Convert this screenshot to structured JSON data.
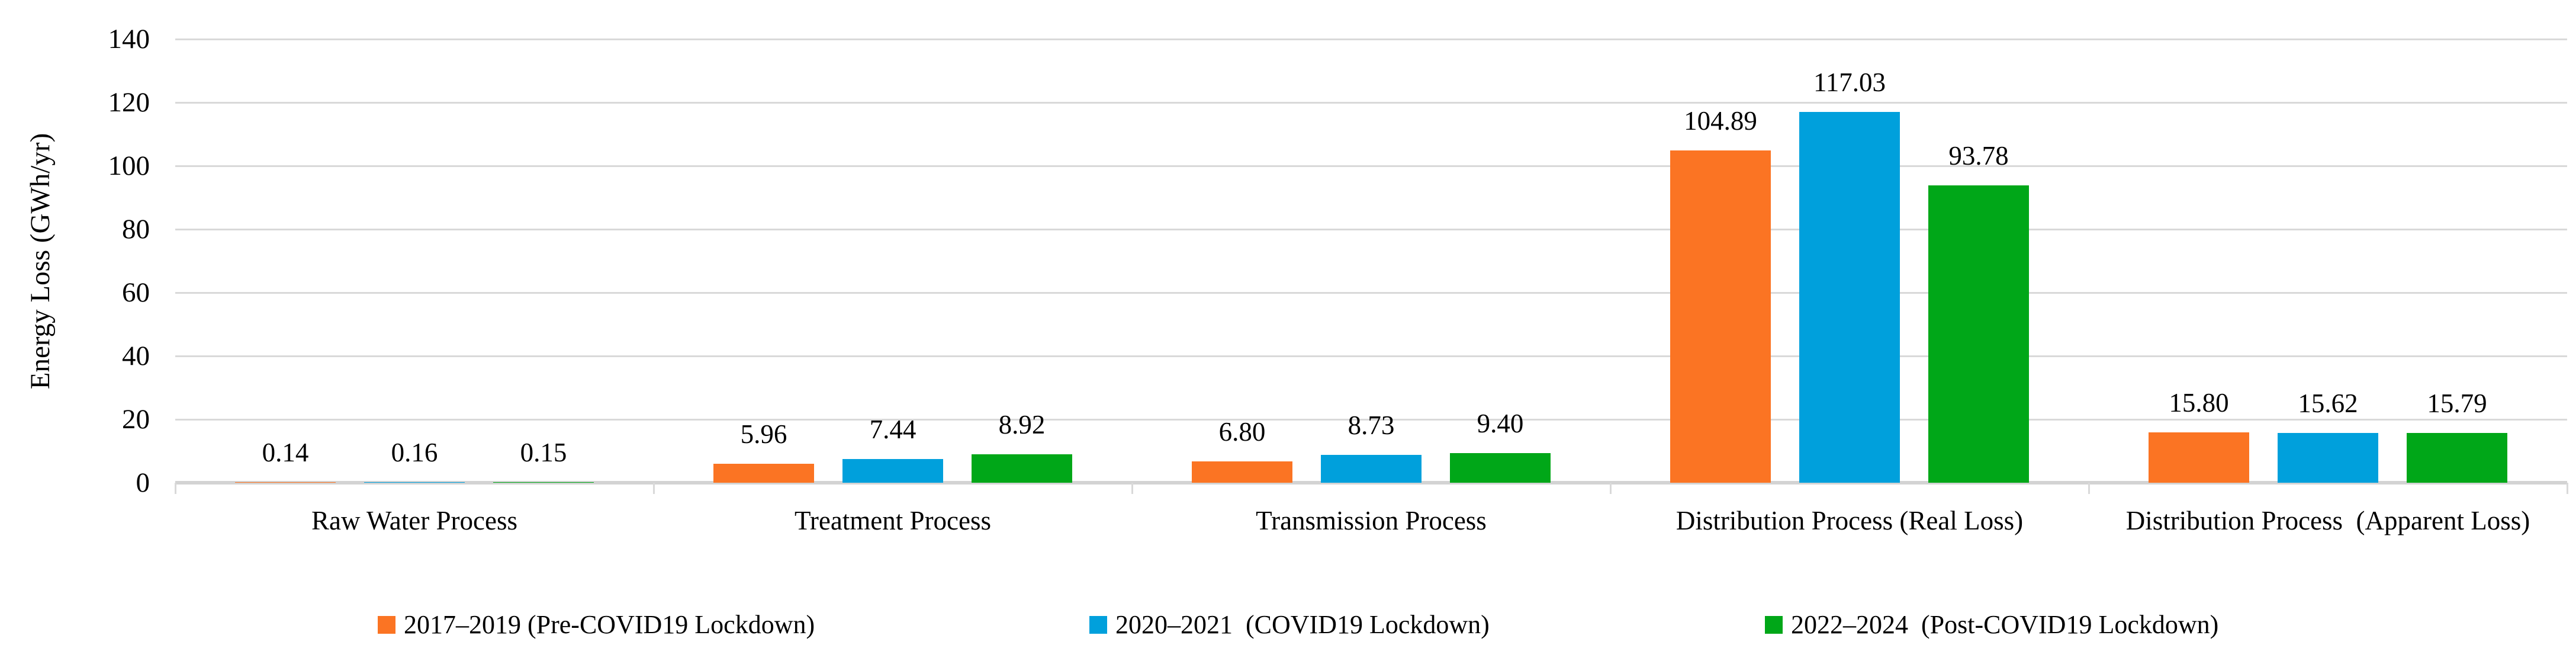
{
  "chart_data": {
    "type": "bar",
    "title": "",
    "xlabel": "",
    "ylabel": "Energy Loss (GWh/yr)",
    "ylim": [
      0,
      140
    ],
    "yticks": [
      0,
      20,
      40,
      60,
      80,
      100,
      120,
      140
    ],
    "grid": true,
    "grid_color": "#D9D9D9",
    "axis_color": "#D3D3D3",
    "legend_position": "bottom",
    "value_labels": "outside-end, 2 decimal places",
    "categories": [
      "Raw Water Process",
      "Treatment Process",
      "Transmission Process",
      "Distribution Process (Real Loss)",
      "Distribution Process  (Apparent Loss)"
    ],
    "series": [
      {
        "name": "2017–2019 (Pre-COVID19 Lockdown)",
        "color": "#FB7423",
        "values": [
          0.14,
          5.96,
          6.8,
          104.89,
          15.8
        ],
        "value_labels": [
          "0.14",
          "5.96",
          "6.80",
          "104.89",
          "15.80"
        ]
      },
      {
        "name": "2020–2021  (COVID19 Lockdown)",
        "color": "#00A0DC",
        "values": [
          0.16,
          7.44,
          8.73,
          117.03,
          15.62
        ],
        "value_labels": [
          "0.16",
          "7.44",
          "8.73",
          "117.03",
          "15.62"
        ]
      },
      {
        "name": "2022–2024  (Post-COVID19 Lockdown)",
        "color": "#00A718",
        "values": [
          0.15,
          8.92,
          9.4,
          93.78,
          15.79
        ],
        "value_labels": [
          "0.15",
          "8.92",
          "9.40",
          "93.78",
          "15.79"
        ]
      }
    ]
  }
}
